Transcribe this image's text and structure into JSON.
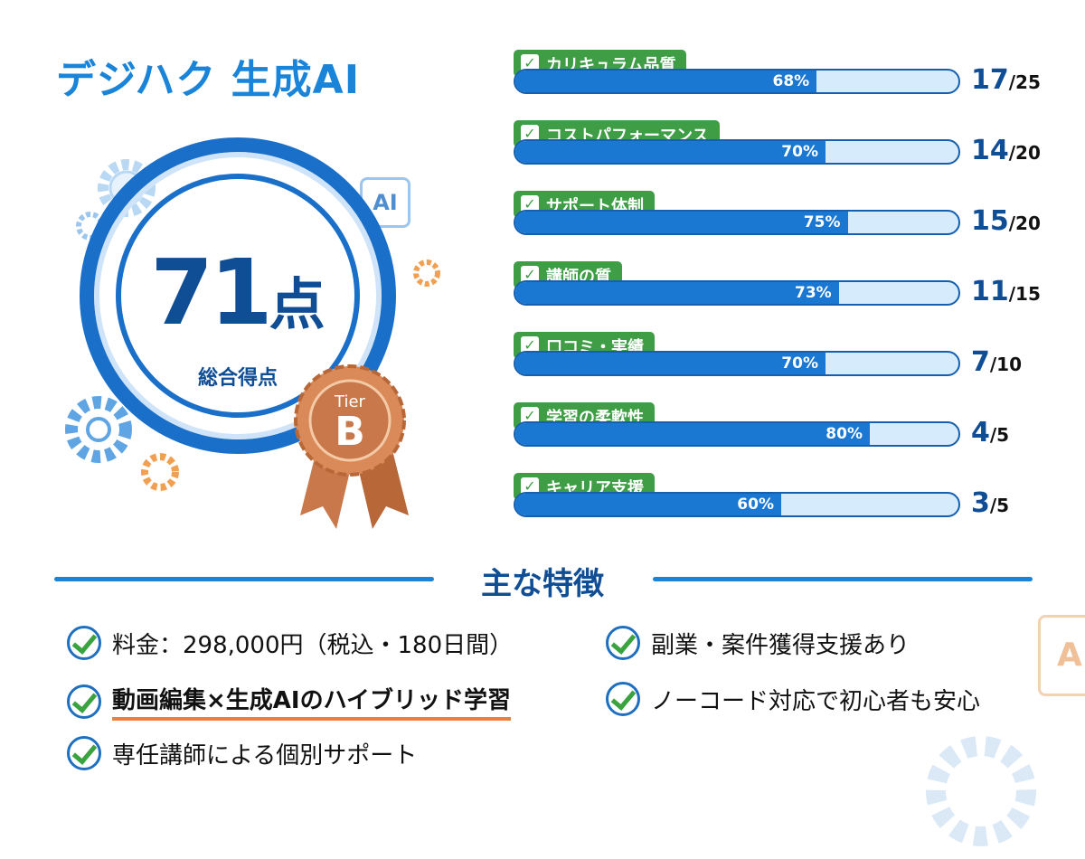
{
  "title": "デジハク 生成AI",
  "score": {
    "value": "71",
    "unit": "点",
    "label": "総合得点"
  },
  "badge": {
    "tier_label": "Tier",
    "tier": "B"
  },
  "ai_icon_text": "AI",
  "categories": [
    {
      "label": "カリキュラム品質",
      "percent": 68,
      "percent_text": "68%",
      "score": "17",
      "max": "/25"
    },
    {
      "label": "コストパフォーマンス",
      "percent": 70,
      "percent_text": "70%",
      "score": "14",
      "max": "/20"
    },
    {
      "label": "サポート体制",
      "percent": 75,
      "percent_text": "75%",
      "score": "15",
      "max": "/20"
    },
    {
      "label": "講師の質",
      "percent": 73,
      "percent_text": "73%",
      "score": "11",
      "max": "/15"
    },
    {
      "label": "口コミ・実績",
      "percent": 70,
      "percent_text": "70%",
      "score": "7",
      "max": "/10"
    },
    {
      "label": "学習の柔軟性",
      "percent": 80,
      "percent_text": "80%",
      "score": "4",
      "max": "/5"
    },
    {
      "label": "キャリア支援",
      "percent": 60,
      "percent_text": "60%",
      "score": "3",
      "max": "/5"
    }
  ],
  "features": {
    "heading": "主な特徴",
    "items": [
      "料金：298,000円（税込・180日間）",
      "副業・案件獲得支援あり",
      "動画編集×生成AIのハイブリッド学習",
      "ノーコード対応で初心者も安心",
      "専任講師による個別サポート"
    ]
  },
  "colors": {
    "primary": "#1a77d2",
    "green": "#3f9e45",
    "bronze": "#c8784a",
    "highlight": "#e8823a"
  }
}
